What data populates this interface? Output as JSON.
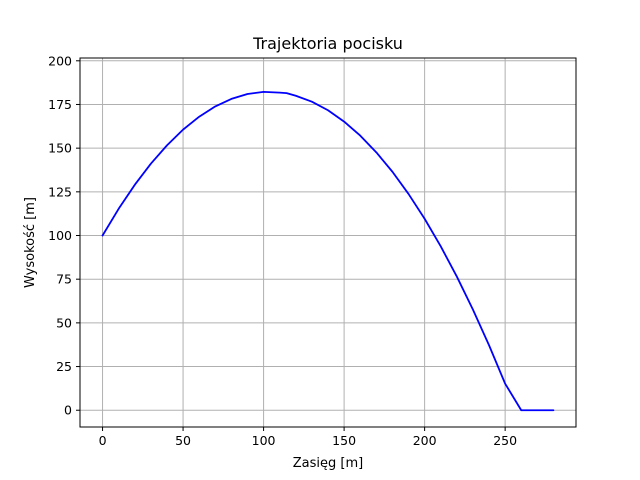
{
  "chart_data": {
    "type": "line",
    "title": "Trajektoria pocisku",
    "xlabel": "Zasięg [m]",
    "ylabel": "Wysokość [m]",
    "xlim": [
      -14,
      294
    ],
    "ylim": [
      -9.6,
      201.6
    ],
    "xticks": [
      0,
      50,
      100,
      150,
      200,
      250
    ],
    "yticks": [
      0,
      25,
      50,
      75,
      100,
      125,
      150,
      175,
      200
    ],
    "grid": true,
    "series": [
      {
        "color": "#0000ff",
        "x": [
          0,
          10,
          20,
          30,
          40,
          50,
          60,
          70,
          80,
          90,
          100,
          110,
          114.3,
          120,
          130,
          140,
          150,
          160,
          170,
          180,
          190,
          200,
          210,
          220,
          230,
          240,
          250,
          260,
          270,
          280
        ],
        "y": [
          100,
          115.3,
          129.0,
          141.1,
          151.6,
          160.6,
          168.0,
          173.9,
          178.2,
          181.0,
          182.2,
          181.8,
          181.5,
          180.0,
          176.6,
          171.7,
          165.2,
          157.2,
          147.6,
          136.5,
          123.8,
          109.6,
          93.8,
          76.5,
          57.6,
          37.2,
          15.2,
          0,
          0,
          0
        ]
      }
    ]
  }
}
